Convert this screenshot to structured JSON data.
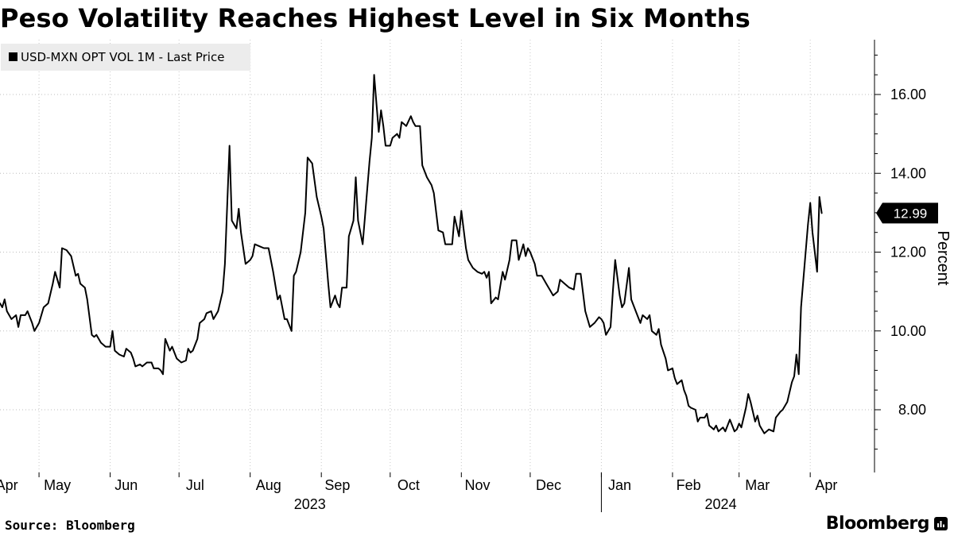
{
  "page": {
    "title": "Peso Volatility Reaches Highest Level in Six Months",
    "source": "Source: Bloomberg",
    "brand": "Bloomberg",
    "brand_icon": "bloomberg-terminal-icon"
  },
  "chart_data": {
    "type": "line",
    "title": "Peso Volatility Reaches Highest Level in Six Months",
    "ylabel": "Percent",
    "xlabel": "",
    "ylim": [
      6.9,
      17.3
    ],
    "xlim": [
      "2023-04-14",
      "2024-04-29"
    ],
    "y_ticks": [
      8,
      10,
      12,
      14,
      16
    ],
    "y_tick_labels": [
      "8.00",
      "10.00",
      "12.00",
      "14.00",
      "16.00"
    ],
    "y_axis_position": "right",
    "grid": "horizontal dotted",
    "legend": {
      "placement": "top-left",
      "entries": [
        "USD-MXN OPT VOL 1M - Last Price"
      ]
    },
    "x_month_labels": [
      {
        "label": "Apr",
        "date": "2023-04-17"
      },
      {
        "label": "May",
        "date": "2023-05-09"
      },
      {
        "label": "Jun",
        "date": "2023-06-08"
      },
      {
        "label": "Jul",
        "date": "2023-07-08"
      },
      {
        "label": "Aug",
        "date": "2023-08-09"
      },
      {
        "label": "Sep",
        "date": "2023-09-08"
      },
      {
        "label": "Oct",
        "date": "2023-10-09"
      },
      {
        "label": "Nov",
        "date": "2023-11-08"
      },
      {
        "label": "Dec",
        "date": "2023-12-09"
      },
      {
        "label": "Jan",
        "date": "2024-01-09"
      },
      {
        "label": "Feb",
        "date": "2024-02-08"
      },
      {
        "label": "Mar",
        "date": "2024-03-09"
      },
      {
        "label": "Apr",
        "date": "2024-04-08"
      }
    ],
    "x_year_labels": [
      {
        "label": "2023",
        "date": "2023-08-27"
      },
      {
        "label": "2024",
        "date": "2024-02-22"
      }
    ],
    "month_boundaries": [
      "2023-05-01",
      "2023-06-01",
      "2023-07-01",
      "2023-08-01",
      "2023-09-01",
      "2023-10-01",
      "2023-11-01",
      "2023-12-01",
      "2024-01-01",
      "2024-02-01",
      "2024-03-01",
      "2024-04-01"
    ],
    "year_boundary": "2024-01-01",
    "last_value": 12.99,
    "last_value_label": "12.99",
    "series": [
      {
        "name": "USD-MXN OPT VOL 1M - Last Price",
        "color": "#000000",
        "points": [
          [
            "2023-04-14",
            10.7
          ],
          [
            "2023-04-15",
            10.6
          ],
          [
            "2023-04-16",
            10.8
          ],
          [
            "2023-04-17",
            10.5
          ],
          [
            "2023-04-19",
            10.3
          ],
          [
            "2023-04-21",
            10.4
          ],
          [
            "2023-04-22",
            10.1
          ],
          [
            "2023-04-23",
            10.4
          ],
          [
            "2023-04-25",
            10.4
          ],
          [
            "2023-04-26",
            10.5
          ],
          [
            "2023-04-28",
            10.2
          ],
          [
            "2023-04-29",
            10.0
          ],
          [
            "2023-05-01",
            10.2
          ],
          [
            "2023-05-03",
            10.6
          ],
          [
            "2023-05-05",
            10.7
          ],
          [
            "2023-05-07",
            11.2
          ],
          [
            "2023-05-08",
            11.5
          ],
          [
            "2023-05-09",
            11.3
          ],
          [
            "2023-05-10",
            11.1
          ],
          [
            "2023-05-11",
            12.1
          ],
          [
            "2023-05-13",
            12.05
          ],
          [
            "2023-05-15",
            11.9
          ],
          [
            "2023-05-17",
            11.4
          ],
          [
            "2023-05-18",
            11.45
          ],
          [
            "2023-05-19",
            11.2
          ],
          [
            "2023-05-21",
            11.1
          ],
          [
            "2023-05-22",
            10.8
          ],
          [
            "2023-05-24",
            9.9
          ],
          [
            "2023-05-25",
            9.85
          ],
          [
            "2023-05-26",
            9.9
          ],
          [
            "2023-05-28",
            9.7
          ],
          [
            "2023-05-30",
            9.6
          ],
          [
            "2023-06-01",
            9.6
          ],
          [
            "2023-06-02",
            10.0
          ],
          [
            "2023-06-03",
            9.5
          ],
          [
            "2023-06-05",
            9.4
          ],
          [
            "2023-06-07",
            9.35
          ],
          [
            "2023-06-08",
            9.55
          ],
          [
            "2023-06-10",
            9.45
          ],
          [
            "2023-06-11",
            9.3
          ],
          [
            "2023-06-12",
            9.1
          ],
          [
            "2023-06-14",
            9.15
          ],
          [
            "2023-06-15",
            9.1
          ],
          [
            "2023-06-17",
            9.2
          ],
          [
            "2023-06-19",
            9.2
          ],
          [
            "2023-06-20",
            9.05
          ],
          [
            "2023-06-22",
            9.05
          ],
          [
            "2023-06-23",
            9.0
          ],
          [
            "2023-06-24",
            8.9
          ],
          [
            "2023-06-25",
            9.8
          ],
          [
            "2023-06-27",
            9.5
          ],
          [
            "2023-06-28",
            9.6
          ],
          [
            "2023-06-30",
            9.3
          ],
          [
            "2023-07-02",
            9.2
          ],
          [
            "2023-07-04",
            9.25
          ],
          [
            "2023-07-05",
            9.55
          ],
          [
            "2023-07-06",
            9.45
          ],
          [
            "2023-07-07",
            9.5
          ],
          [
            "2023-07-09",
            9.8
          ],
          [
            "2023-07-10",
            10.2
          ],
          [
            "2023-07-12",
            10.3
          ],
          [
            "2023-07-13",
            10.45
          ],
          [
            "2023-07-15",
            10.5
          ],
          [
            "2023-07-16",
            10.3
          ],
          [
            "2023-07-18",
            10.5
          ],
          [
            "2023-07-20",
            11.0
          ],
          [
            "2023-07-21",
            11.7
          ],
          [
            "2023-07-23",
            14.7
          ],
          [
            "2023-07-24",
            12.8
          ],
          [
            "2023-07-26",
            12.6
          ],
          [
            "2023-07-27",
            13.1
          ],
          [
            "2023-07-28",
            12.5
          ],
          [
            "2023-07-29",
            12.1
          ],
          [
            "2023-07-30",
            11.7
          ],
          [
            "2023-08-01",
            11.8
          ],
          [
            "2023-08-02",
            11.9
          ],
          [
            "2023-08-03",
            12.2
          ],
          [
            "2023-08-05",
            12.15
          ],
          [
            "2023-08-07",
            12.1
          ],
          [
            "2023-08-09",
            12.1
          ],
          [
            "2023-08-11",
            11.5
          ],
          [
            "2023-08-13",
            10.8
          ],
          [
            "2023-08-14",
            10.9
          ],
          [
            "2023-08-16",
            10.3
          ],
          [
            "2023-08-17",
            10.3
          ],
          [
            "2023-08-19",
            10.0
          ],
          [
            "2023-08-20",
            11.4
          ],
          [
            "2023-08-21",
            11.5
          ],
          [
            "2023-08-23",
            12.0
          ],
          [
            "2023-08-25",
            13.0
          ],
          [
            "2023-08-26",
            14.4
          ],
          [
            "2023-08-28",
            14.25
          ],
          [
            "2023-08-30",
            13.4
          ],
          [
            "2023-09-01",
            12.9
          ],
          [
            "2023-09-02",
            12.6
          ],
          [
            "2023-09-04",
            11.2
          ],
          [
            "2023-09-05",
            10.6
          ],
          [
            "2023-09-07",
            10.9
          ],
          [
            "2023-09-08",
            10.7
          ],
          [
            "2023-09-09",
            10.6
          ],
          [
            "2023-09-10",
            11.1
          ],
          [
            "2023-09-12",
            11.1
          ],
          [
            "2023-09-13",
            12.4
          ],
          [
            "2023-09-15",
            12.8
          ],
          [
            "2023-09-16",
            13.9
          ],
          [
            "2023-09-17",
            12.8
          ],
          [
            "2023-09-19",
            12.2
          ],
          [
            "2023-09-20",
            12.9
          ],
          [
            "2023-09-22",
            14.3
          ],
          [
            "2023-09-23",
            14.9
          ],
          [
            "2023-09-24",
            16.5
          ],
          [
            "2023-09-26",
            15.05
          ],
          [
            "2023-09-27",
            15.6
          ],
          [
            "2023-09-28",
            15.2
          ],
          [
            "2023-09-29",
            14.7
          ],
          [
            "2023-10-01",
            14.7
          ],
          [
            "2023-10-02",
            14.9
          ],
          [
            "2023-10-04",
            15.0
          ],
          [
            "2023-10-05",
            14.9
          ],
          [
            "2023-10-06",
            15.3
          ],
          [
            "2023-10-08",
            15.2
          ],
          [
            "2023-10-10",
            15.45
          ],
          [
            "2023-10-11",
            15.3
          ],
          [
            "2023-10-12",
            15.2
          ],
          [
            "2023-10-14",
            15.2
          ],
          [
            "2023-10-15",
            14.2
          ],
          [
            "2023-10-17",
            13.9
          ],
          [
            "2023-10-19",
            13.7
          ],
          [
            "2023-10-20",
            13.5
          ],
          [
            "2023-10-22",
            12.55
          ],
          [
            "2023-10-24",
            12.5
          ],
          [
            "2023-10-25",
            12.2
          ],
          [
            "2023-10-27",
            12.2
          ],
          [
            "2023-10-28",
            12.2
          ],
          [
            "2023-10-29",
            12.9
          ],
          [
            "2023-10-31",
            12.4
          ],
          [
            "2023-11-01",
            13.05
          ],
          [
            "2023-11-03",
            12.1
          ],
          [
            "2023-11-04",
            11.8
          ],
          [
            "2023-11-06",
            11.6
          ],
          [
            "2023-11-08",
            11.5
          ],
          [
            "2023-11-10",
            11.45
          ],
          [
            "2023-11-11",
            11.5
          ],
          [
            "2023-11-12",
            11.35
          ],
          [
            "2023-11-13",
            11.5
          ],
          [
            "2023-11-14",
            10.7
          ],
          [
            "2023-11-16",
            10.85
          ],
          [
            "2023-11-17",
            10.8
          ],
          [
            "2023-11-19",
            11.5
          ],
          [
            "2023-11-20",
            11.3
          ],
          [
            "2023-11-22",
            11.8
          ],
          [
            "2023-11-23",
            12.3
          ],
          [
            "2023-11-25",
            12.3
          ],
          [
            "2023-11-26",
            11.8
          ],
          [
            "2023-11-28",
            12.2
          ],
          [
            "2023-11-29",
            11.9
          ],
          [
            "2023-11-30",
            12.1
          ],
          [
            "2023-12-01",
            12.0
          ],
          [
            "2023-12-03",
            11.7
          ],
          [
            "2023-12-04",
            11.4
          ],
          [
            "2023-12-06",
            11.4
          ],
          [
            "2023-12-08",
            11.2
          ],
          [
            "2023-12-10",
            11.0
          ],
          [
            "2023-12-11",
            10.9
          ],
          [
            "2023-12-13",
            11.0
          ],
          [
            "2023-12-14",
            11.3
          ],
          [
            "2023-12-16",
            11.2
          ],
          [
            "2023-12-18",
            11.1
          ],
          [
            "2023-12-20",
            11.05
          ],
          [
            "2023-12-21",
            11.45
          ],
          [
            "2023-12-23",
            11.45
          ],
          [
            "2023-12-25",
            10.5
          ],
          [
            "2023-12-26",
            10.3
          ],
          [
            "2023-12-27",
            10.1
          ],
          [
            "2023-12-29",
            10.2
          ],
          [
            "2023-12-31",
            10.35
          ],
          [
            "2024-01-01",
            10.3
          ],
          [
            "2024-01-02",
            10.2
          ],
          [
            "2024-01-03",
            9.9
          ],
          [
            "2024-01-05",
            10.1
          ],
          [
            "2024-01-06",
            11.0
          ],
          [
            "2024-01-07",
            11.8
          ],
          [
            "2024-01-09",
            10.9
          ],
          [
            "2024-01-10",
            10.6
          ],
          [
            "2024-01-11",
            10.7
          ],
          [
            "2024-01-13",
            11.6
          ],
          [
            "2024-01-14",
            10.8
          ],
          [
            "2024-01-16",
            10.5
          ],
          [
            "2024-01-18",
            10.2
          ],
          [
            "2024-01-19",
            10.4
          ],
          [
            "2024-01-21",
            10.3
          ],
          [
            "2024-01-22",
            10.4
          ],
          [
            "2024-01-23",
            10.0
          ],
          [
            "2024-01-25",
            9.9
          ],
          [
            "2024-01-26",
            10.05
          ],
          [
            "2024-01-27",
            9.65
          ],
          [
            "2024-01-29",
            9.3
          ],
          [
            "2024-01-30",
            9.0
          ],
          [
            "2024-02-01",
            9.05
          ],
          [
            "2024-02-02",
            8.8
          ],
          [
            "2024-02-03",
            8.65
          ],
          [
            "2024-02-05",
            8.75
          ],
          [
            "2024-02-06",
            8.5
          ],
          [
            "2024-02-07",
            8.35
          ],
          [
            "2024-02-08",
            8.1
          ],
          [
            "2024-02-09",
            8.05
          ],
          [
            "2024-02-11",
            8.0
          ],
          [
            "2024-02-12",
            7.7
          ],
          [
            "2024-02-13",
            7.8
          ],
          [
            "2024-02-15",
            7.8
          ],
          [
            "2024-02-16",
            7.9
          ],
          [
            "2024-02-17",
            7.6
          ],
          [
            "2024-02-19",
            7.5
          ],
          [
            "2024-02-20",
            7.6
          ],
          [
            "2024-02-21",
            7.45
          ],
          [
            "2024-02-23",
            7.55
          ],
          [
            "2024-02-24",
            7.45
          ],
          [
            "2024-02-26",
            7.75
          ],
          [
            "2024-02-28",
            7.45
          ],
          [
            "2024-02-29",
            7.5
          ],
          [
            "2024-03-01",
            7.65
          ],
          [
            "2024-03-02",
            7.55
          ],
          [
            "2024-03-04",
            8.05
          ],
          [
            "2024-03-05",
            8.4
          ],
          [
            "2024-03-06",
            8.2
          ],
          [
            "2024-03-08",
            7.7
          ],
          [
            "2024-03-09",
            7.85
          ],
          [
            "2024-03-10",
            7.6
          ],
          [
            "2024-03-12",
            7.4
          ],
          [
            "2024-03-14",
            7.5
          ],
          [
            "2024-03-16",
            7.45
          ],
          [
            "2024-03-17",
            7.8
          ],
          [
            "2024-03-19",
            7.95
          ],
          [
            "2024-03-20",
            8.0
          ],
          [
            "2024-03-22",
            8.2
          ],
          [
            "2024-03-24",
            8.7
          ],
          [
            "2024-03-25",
            8.85
          ],
          [
            "2024-03-26",
            9.4
          ],
          [
            "2024-03-27",
            8.9
          ],
          [
            "2024-03-28",
            10.6
          ],
          [
            "2024-03-29",
            11.3
          ],
          [
            "2024-03-31",
            12.7
          ],
          [
            "2024-04-01",
            13.25
          ],
          [
            "2024-04-02",
            12.5
          ],
          [
            "2024-04-04",
            11.5
          ],
          [
            "2024-04-05",
            13.4
          ],
          [
            "2024-04-06",
            12.99
          ]
        ]
      }
    ]
  }
}
